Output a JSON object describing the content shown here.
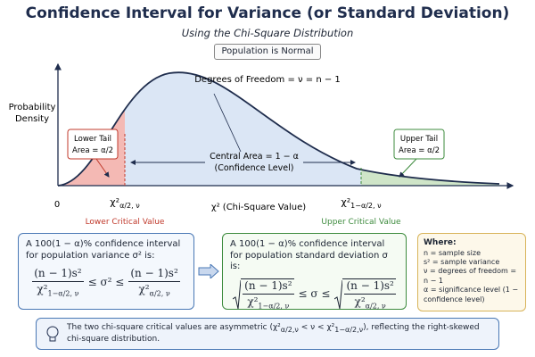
{
  "header": {
    "title": "Confidence Interval for Variance (or Standard Deviation)",
    "subtitle": "Using the Chi-Square Distribution",
    "badge": "Population is Normal"
  },
  "plot": {
    "dof": "Degrees of Freedom = ν = n − 1",
    "y_label": [
      "Probability",
      "Density"
    ],
    "origin": "0",
    "x_label": "χ² (Chi-Square Value)",
    "lower_tail": [
      "Lower Tail",
      "Area = α/2"
    ],
    "upper_tail": [
      "Upper Tail",
      "Area = α/2"
    ],
    "central": [
      "Central Area = 1 − α",
      "(Confidence Level)"
    ],
    "lower_critical": {
      "symbol": "χ²",
      "sub": "α/2, ν",
      "label": "Lower Critical Value"
    },
    "upper_critical": {
      "symbol": "χ²",
      "sub": "1−α/2, ν",
      "label": "Upper Critical Value"
    }
  },
  "variance_box": {
    "intro": "A 100(1 − α)% confidence interval for population variance σ² is:",
    "numerator": "(n − 1)s²",
    "left_den": {
      "symbol": "χ²",
      "sub": "1−α/2, ν"
    },
    "relation": "≤ σ² ≤",
    "right_den": {
      "symbol": "χ²",
      "sub": "α/2, ν"
    }
  },
  "sd_box": {
    "intro": "A 100(1 − α)% confidence interval for population standard deviation σ is:",
    "numerator": "(n − 1)s²",
    "left_den": {
      "symbol": "χ²",
      "sub": "1−α/2, ν"
    },
    "relation": "≤ σ ≤",
    "right_den": {
      "symbol": "χ²",
      "sub": "α/2, ν"
    }
  },
  "where_box": {
    "title": "Where:",
    "items": [
      "n = sample size",
      "s² = sample variance",
      "ν = degrees of freedom = n − 1",
      "α = significance level (1 − confidence level)"
    ]
  },
  "footer": {
    "before": "The two chi-square critical values are asymmetric (",
    "lower": {
      "symbol": "χ²",
      "sub": "α/2,ν"
    },
    "middle": " < ν < ",
    "upper": {
      "symbol": "χ²",
      "sub": "1−α/2,ν"
    },
    "after": "), reflecting the right-skewed chi-square distribution."
  }
}
